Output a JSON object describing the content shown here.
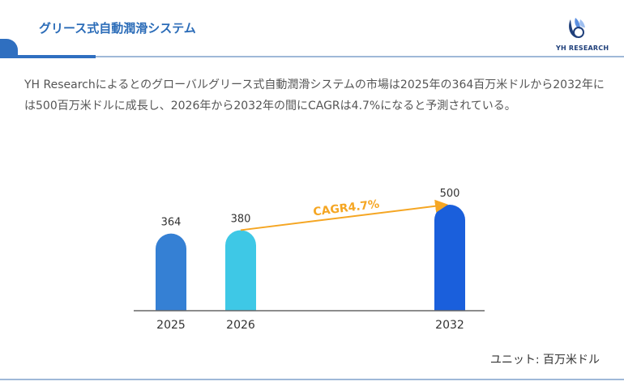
{
  "header": {
    "title": "グリース式自動潤滑システム",
    "logo_text": "YH RESEARCH"
  },
  "description": "YH Researchによるとのグローバルグリース式自動潤滑システムの市場は2025年の364百万米ドルから2032年には500百万米ドルに成長し、2026年から2032年の間にCAGRは4.7%になると予測されている。",
  "unit_label": "ユニット: 百万米ドル",
  "colors": {
    "accent": "#2f6fc0",
    "arrow": "#f5a623"
  },
  "chart_data": {
    "type": "bar",
    "categories": [
      "2025",
      "2026",
      "2032"
    ],
    "values": [
      364,
      380,
      500
    ],
    "bar_colors": [
      "#3580d4",
      "#3ec8e6",
      "#1a5fdc"
    ],
    "annotation": "CAGR4.7%",
    "ylim": [
      0,
      500
    ],
    "grid": false
  }
}
